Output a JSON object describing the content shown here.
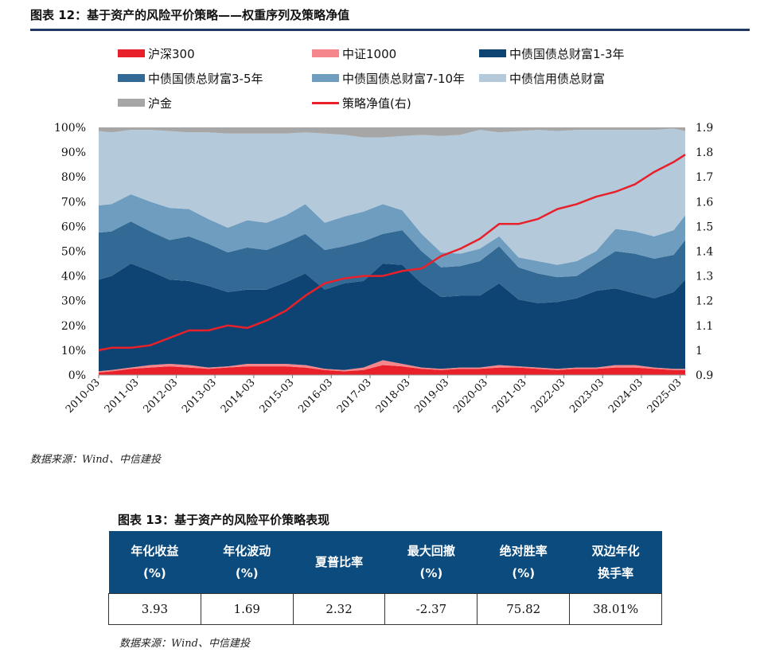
{
  "figure12": {
    "title": "图表 12：基于资产的风险平价策略——权重序列及策略净值",
    "source": "数据来源：Wind、中信建投"
  },
  "chart_data": {
    "type": "area",
    "left_axis_ticks": [
      "0%",
      "10%",
      "20%",
      "30%",
      "40%",
      "50%",
      "60%",
      "70%",
      "80%",
      "90%",
      "100%"
    ],
    "right_axis_ticks": [
      "0.9",
      "1",
      "1.1",
      "1.2",
      "1.3",
      "1.4",
      "1.5",
      "1.6",
      "1.7",
      "1.8",
      "1.9"
    ],
    "ylim_left": [
      0,
      100
    ],
    "ylim_right": [
      0.9,
      1.9
    ],
    "x_tick_labels": [
      "2010-03",
      "2011-03",
      "2012-03",
      "2013-03",
      "2014-03",
      "2015-03",
      "2016-03",
      "2017-03",
      "2018-03",
      "2019-03",
      "2020-03",
      "2021-03",
      "2022-03",
      "2023-03",
      "2024-03",
      "2025-03"
    ],
    "x_years": [
      2010.17,
      2010.5,
      2011.0,
      2011.5,
      2012.0,
      2012.5,
      2013.0,
      2013.5,
      2014.0,
      2014.5,
      2015.0,
      2015.5,
      2016.0,
      2016.5,
      2017.0,
      2017.5,
      2018.0,
      2018.5,
      2019.0,
      2019.5,
      2020.0,
      2020.5,
      2021.0,
      2021.5,
      2022.0,
      2022.5,
      2023.0,
      2023.5,
      2024.0,
      2024.5,
      2025.0,
      2025.3
    ],
    "legend": [
      {
        "name": "沪深300",
        "color": "#e8202a",
        "kind": "area"
      },
      {
        "name": "中证1000",
        "color": "#f4868c",
        "kind": "area"
      },
      {
        "name": "中债国债总财富1-3年",
        "color": "#0d4473",
        "kind": "area"
      },
      {
        "name": "中债国债总财富3-5年",
        "color": "#336a95",
        "kind": "area"
      },
      {
        "name": "中债国债总财富7-10年",
        "color": "#6f9dbf",
        "kind": "area"
      },
      {
        "name": "中债信用债总财富",
        "color": "#b4cadb",
        "kind": "area"
      },
      {
        "name": "沪金",
        "color": "#a6a6a6",
        "kind": "area"
      },
      {
        "name": "策略净值(右)",
        "color": "#e8202a",
        "kind": "line"
      }
    ],
    "series": [
      {
        "name": "沪深300",
        "values": [
          1.0,
          1.5,
          2.5,
          3.0,
          3.5,
          3.0,
          2.5,
          3.0,
          3.5,
          3.5,
          3.5,
          3.0,
          2.0,
          1.5,
          2.0,
          4.0,
          3.5,
          2.5,
          2.0,
          2.5,
          2.5,
          3.0,
          3.0,
          2.5,
          2.0,
          2.5,
          2.5,
          3.0,
          3.0,
          2.5,
          2.0,
          2.0
        ]
      },
      {
        "name": "中证1000",
        "values": [
          0.5,
          0.5,
          0.5,
          1.0,
          1.0,
          1.0,
          0.5,
          0.5,
          1.0,
          1.0,
          1.0,
          1.0,
          0.5,
          0.5,
          1.0,
          2.0,
          1.0,
          0.5,
          0.5,
          0.5,
          0.5,
          1.0,
          0.5,
          0.5,
          0.5,
          0.5,
          0.5,
          1.0,
          1.0,
          0.5,
          0.5,
          0.5
        ]
      },
      {
        "name": "中债国债总财富1-3年",
        "values": [
          37,
          38,
          42,
          38,
          34,
          34,
          33,
          30,
          30,
          30,
          33,
          37,
          32,
          35,
          35,
          39,
          40,
          34,
          29,
          29,
          29,
          33,
          27,
          26,
          27,
          28,
          31,
          31,
          29,
          28,
          31,
          36
        ]
      },
      {
        "name": "中债国债总财富3-5年",
        "values": [
          19,
          18,
          17,
          16,
          16,
          18,
          17,
          16,
          17,
          16,
          16,
          16,
          16,
          15,
          16,
          12,
          14,
          13,
          12,
          12,
          14,
          15,
          13,
          12,
          10,
          9,
          11,
          15,
          16,
          16,
          15,
          16
        ]
      },
      {
        "name": "中债国债总财富7-10年",
        "values": [
          11,
          11,
          11,
          12,
          13,
          11,
          10,
          10,
          11,
          11,
          11,
          12,
          11,
          12,
          12,
          12,
          8,
          7,
          6,
          5,
          5,
          4,
          4,
          5,
          5,
          6,
          5,
          9,
          9,
          9,
          10,
          10
        ]
      },
      {
        "name": "中债信用债总财富",
        "values": [
          30,
          29,
          26,
          29,
          31,
          31,
          35,
          38,
          35,
          36,
          33,
          29,
          36,
          33,
          30,
          27,
          30,
          40,
          47,
          48,
          48,
          42,
          51,
          53,
          54,
          53,
          49,
          40,
          41,
          43,
          41,
          34
        ]
      },
      {
        "name": "沪金",
        "values": [
          1.5,
          2.0,
          1.0,
          1.0,
          1.5,
          2.0,
          2.0,
          2.5,
          2.5,
          2.5,
          2.5,
          2.0,
          2.5,
          3.0,
          4.0,
          4.0,
          3.5,
          3.0,
          3.5,
          3.0,
          1.0,
          2.0,
          1.5,
          1.0,
          1.5,
          1.0,
          1.0,
          1.0,
          1.0,
          1.0,
          0.5,
          1.5
        ]
      },
      {
        "name": "策略净值(右)",
        "axis": "right",
        "values": [
          1.0,
          1.01,
          1.01,
          1.02,
          1.05,
          1.08,
          1.08,
          1.1,
          1.09,
          1.12,
          1.16,
          1.22,
          1.27,
          1.29,
          1.3,
          1.3,
          1.32,
          1.33,
          1.38,
          1.41,
          1.45,
          1.51,
          1.51,
          1.53,
          1.57,
          1.59,
          1.62,
          1.64,
          1.67,
          1.72,
          1.76,
          1.79
        ]
      }
    ]
  },
  "figure13": {
    "title": "图表 13：基于资产的风险平价策略表现",
    "headers": [
      {
        "l1": "年化收益",
        "l2": "(%)"
      },
      {
        "l1": "年化波动",
        "l2": "(%)"
      },
      {
        "l1": "夏普比率",
        "l2": ""
      },
      {
        "l1": "最大回撤",
        "l2": "(%)"
      },
      {
        "l1": "绝对胜率",
        "l2": "(%)"
      },
      {
        "l1": "双边年化",
        "l2": "换手率"
      }
    ],
    "values": [
      "3.93",
      "1.69",
      "2.32",
      "-2.37",
      "75.82",
      "38.01%"
    ],
    "source": "数据来源：Wind、中信建投"
  }
}
